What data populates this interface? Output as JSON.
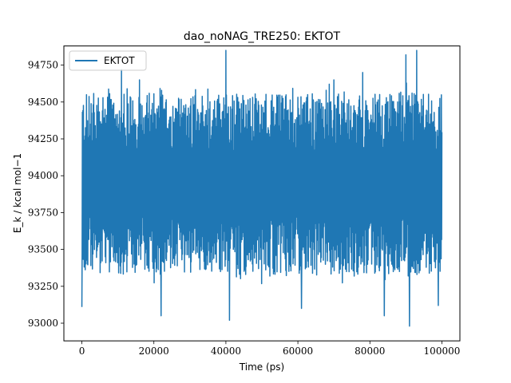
{
  "chart_data": {
    "type": "line",
    "title": "dao_noNAG_TRE250:  EKTOT",
    "xlabel": "Time (ps)",
    "ylabel": "E_k / kcal mol−1",
    "xlim": [
      -5000,
      105000
    ],
    "ylim": [
      92880,
      94880
    ],
    "x_ticks": [
      0,
      20000,
      40000,
      60000,
      80000,
      100000
    ],
    "x_tick_labels": [
      "0",
      "20000",
      "40000",
      "60000",
      "80000",
      "100000"
    ],
    "y_ticks": [
      93000,
      93250,
      93500,
      93750,
      94000,
      94250,
      94500,
      94750
    ],
    "y_tick_labels": [
      "93000",
      "93250",
      "93500",
      "93750",
      "94000",
      "94250",
      "94500",
      "94750"
    ],
    "grid": false,
    "legend": {
      "placement": "upper-left",
      "entries": [
        "EKTOT"
      ]
    },
    "series": [
      {
        "name": "EKTOT",
        "color": "#1f77b4",
        "x_range": [
          0,
          100000
        ],
        "band": {
          "low": 93330,
          "high": 94560,
          "mean": 93940
        },
        "spikes": [
          {
            "x": 11000,
            "y": 94720
          },
          {
            "x": 16000,
            "y": 94650
          },
          {
            "x": 40000,
            "y": 94850
          },
          {
            "x": 70000,
            "y": 94650
          },
          {
            "x": 78000,
            "y": 94700
          },
          {
            "x": 90000,
            "y": 94820
          },
          {
            "x": 93000,
            "y": 94850
          },
          {
            "x": 0,
            "y": 93110
          },
          {
            "x": 22000,
            "y": 93050
          },
          {
            "x": 41000,
            "y": 93020
          },
          {
            "x": 61000,
            "y": 93100
          },
          {
            "x": 84000,
            "y": 93050
          },
          {
            "x": 91000,
            "y": 92980
          },
          {
            "x": 99000,
            "y": 93120
          }
        ]
      }
    ]
  }
}
